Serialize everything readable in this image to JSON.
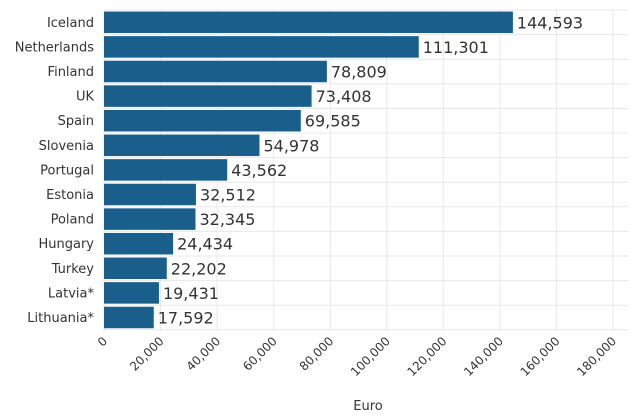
{
  "chart_data": {
    "type": "bar",
    "orientation": "horizontal",
    "categories": [
      "Iceland",
      "Netherlands",
      "Finland",
      "UK",
      "Spain",
      "Slovenia",
      "Portugal",
      "Estonia",
      "Poland",
      "Hungary",
      "Turkey",
      "Latvia*",
      "Lithuania*"
    ],
    "values": [
      144593,
      111301,
      78809,
      73408,
      69585,
      54978,
      43562,
      32512,
      32345,
      24434,
      22202,
      19431,
      17592
    ],
    "value_labels": [
      "144,593",
      "111,301",
      "78,809",
      "73,408",
      "69,585",
      "54,978",
      "43,562",
      "32,512",
      "32,345",
      "24,434",
      "22,202",
      "19,431",
      "17,592"
    ],
    "xticks": [
      0,
      20000,
      40000,
      60000,
      80000,
      100000,
      120000,
      140000,
      160000,
      180000
    ],
    "xtick_labels": [
      "0",
      "20,000",
      "40,000",
      "60,000",
      "80,000",
      "100,000",
      "120,000",
      "140,000",
      "160,000",
      "180,000"
    ],
    "xlabel": "Euro",
    "xlim": [
      0,
      186000
    ],
    "grid": true,
    "bar_color": "#1a5e8c",
    "grid_color": "#e8e8e8"
  }
}
